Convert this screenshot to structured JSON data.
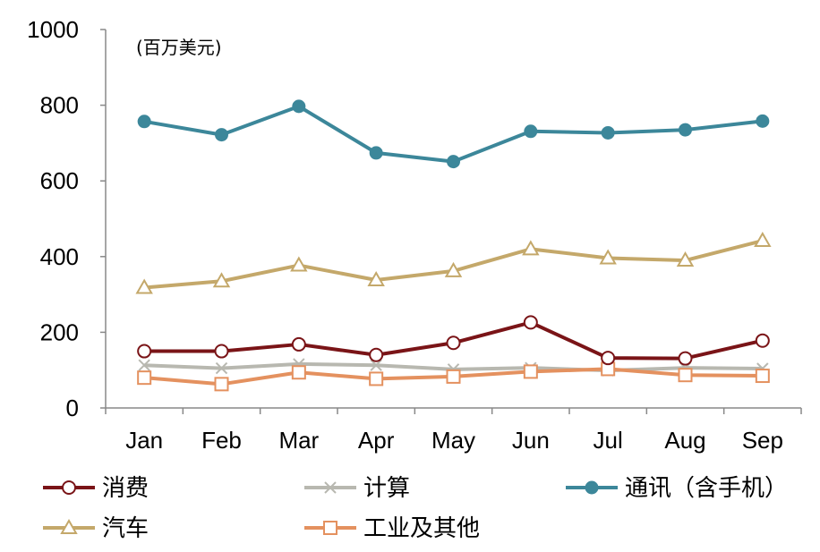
{
  "chart_data": {
    "type": "line",
    "unit_label": "(百万美元)",
    "categories": [
      "Jan",
      "Feb",
      "Mar",
      "Apr",
      "May",
      "Jun",
      "Jul",
      "Aug",
      "Sep"
    ],
    "ylim": [
      0,
      1000
    ],
    "yticks": [
      0,
      200,
      400,
      600,
      800,
      1000
    ],
    "grid": false,
    "legend_position": "bottom",
    "series": [
      {
        "name": "消费",
        "color": "#7a1417",
        "marker": "circle-open",
        "values": [
          150,
          150,
          168,
          140,
          172,
          226,
          132,
          131,
          178
        ]
      },
      {
        "name": "计算",
        "color": "#b8b8b0",
        "marker": "x",
        "values": [
          113,
          105,
          116,
          113,
          102,
          106,
          99,
          106,
          104
        ]
      },
      {
        "name": "通讯（含手机）",
        "color": "#3c879a",
        "marker": "circle-filled",
        "values": [
          757,
          722,
          797,
          674,
          651,
          731,
          727,
          735,
          758
        ]
      },
      {
        "name": "汽车",
        "color": "#c4a86a",
        "marker": "triangle-open",
        "values": [
          318,
          335,
          377,
          338,
          362,
          420,
          396,
          390,
          442
        ]
      },
      {
        "name": "工业及其他",
        "color": "#e4915f",
        "marker": "square-open",
        "values": [
          80,
          63,
          94,
          77,
          83,
          96,
          103,
          87,
          85
        ]
      }
    ]
  }
}
